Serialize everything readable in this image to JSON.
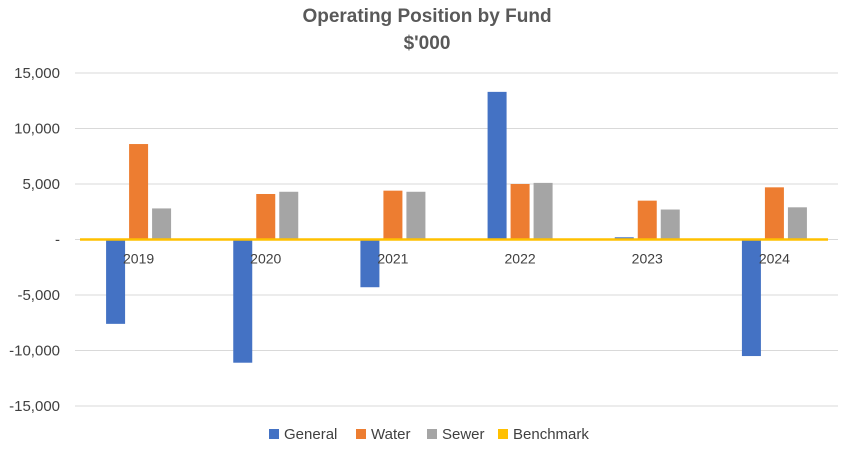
{
  "chart_data": {
    "type": "bar",
    "title": "Operating Position by Fund",
    "subtitle": "$'000",
    "xlabel": "",
    "ylabel": "",
    "categories": [
      "2019",
      "2020",
      "2021",
      "2022",
      "2023",
      "2024"
    ],
    "series": [
      {
        "name": "General",
        "color": "#4472C4",
        "values": [
          -7600,
          -11100,
          -4300,
          13300,
          200,
          -10500
        ]
      },
      {
        "name": "Water",
        "color": "#ED7D31",
        "values": [
          8600,
          4100,
          4400,
          5000,
          3500,
          4700
        ]
      },
      {
        "name": "Sewer",
        "color": "#A5A5A5",
        "values": [
          2800,
          4300,
          4300,
          5100,
          2700,
          2900
        ]
      }
    ],
    "benchmark": {
      "name": "Benchmark",
      "color": "#FFC000",
      "value": 0
    },
    "ylim": [
      -15000,
      15000
    ],
    "yticks": [
      15000,
      10000,
      5000,
      0,
      -5000,
      -10000,
      -15000
    ],
    "ytick_labels": [
      "15,000",
      "10,000",
      "5,000",
      "-",
      "-5,000",
      "-10,000",
      "-15,000"
    ],
    "grid": true,
    "legend_position": "bottom"
  }
}
